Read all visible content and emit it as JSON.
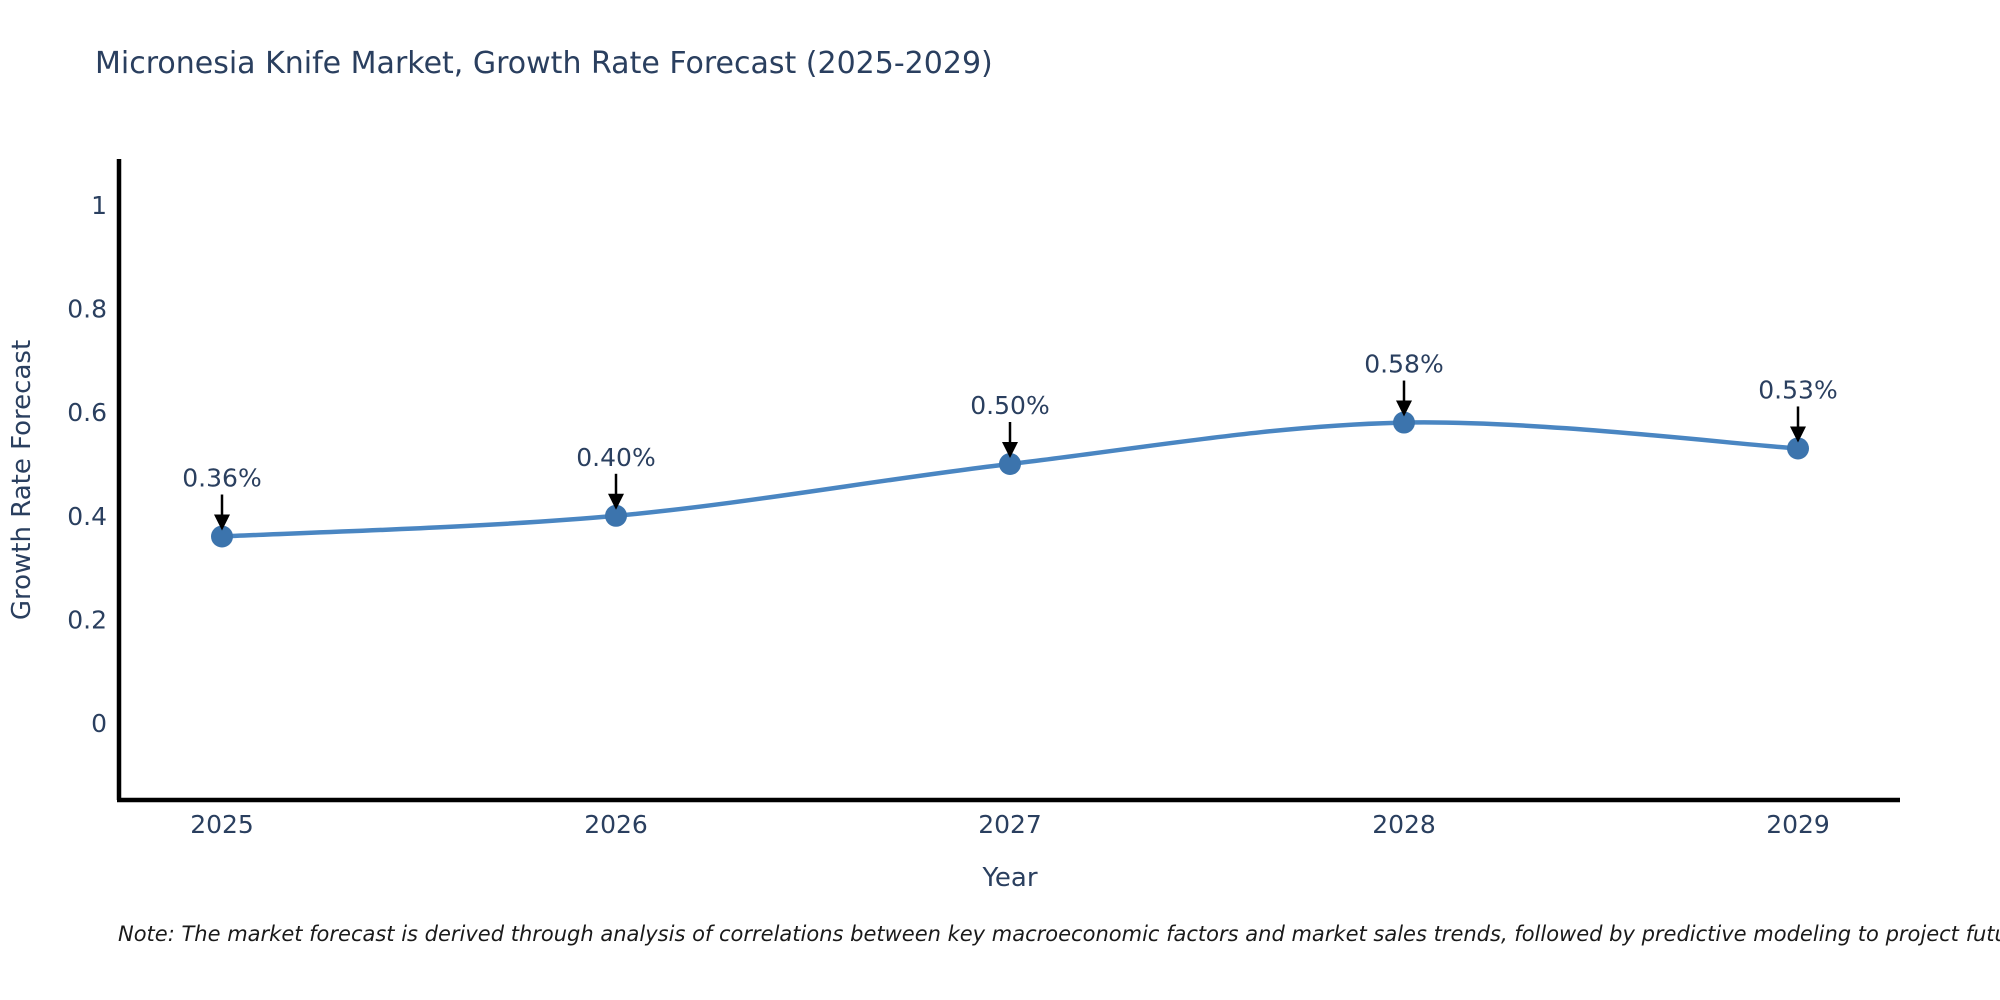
{
  "title": "Micronesia Knife Market, Growth Rate Forecast (2025-2029)",
  "note": "Note: The market forecast is derived through analysis of correlations between key macroeconomic factors and market sales trends, followed by predictive modeling to project future sales",
  "chart_data": {
    "type": "line",
    "title": "Micronesia Knife Market, Growth Rate Forecast (2025-2029)",
    "xlabel": "Year",
    "ylabel": "Growth Rate Forecast",
    "x": [
      2025,
      2026,
      2027,
      2028,
      2029
    ],
    "series": [
      {
        "name": "Growth Rate Forecast",
        "values": [
          0.36,
          0.4,
          0.5,
          0.58,
          0.53
        ],
        "point_labels": [
          "0.36%",
          "0.40%",
          "0.50%",
          "0.58%",
          "0.53%"
        ]
      }
    ],
    "xtick_labels": [
      "2025",
      "2026",
      "2027",
      "2028",
      "2029"
    ],
    "yticks": [
      0,
      0.2,
      0.4,
      0.6,
      0.8,
      1
    ],
    "ytick_labels": [
      "0",
      "0.2",
      "0.4",
      "0.6",
      "0.8",
      "1"
    ],
    "xlim": [
      2024.74,
      2029.26
    ],
    "ylim": [
      -0.15,
      1.09
    ],
    "line_shape": "spline",
    "grid": false,
    "legend_position": "none",
    "annotations_have_arrows": true,
    "colors": {
      "line": "#4a86c2",
      "marker": "#3c74ad",
      "axis": "#000000",
      "text": "#2a3f5f",
      "arrow": "#000000",
      "note_text": "#1a1a1a",
      "background": "#ffffff"
    }
  }
}
